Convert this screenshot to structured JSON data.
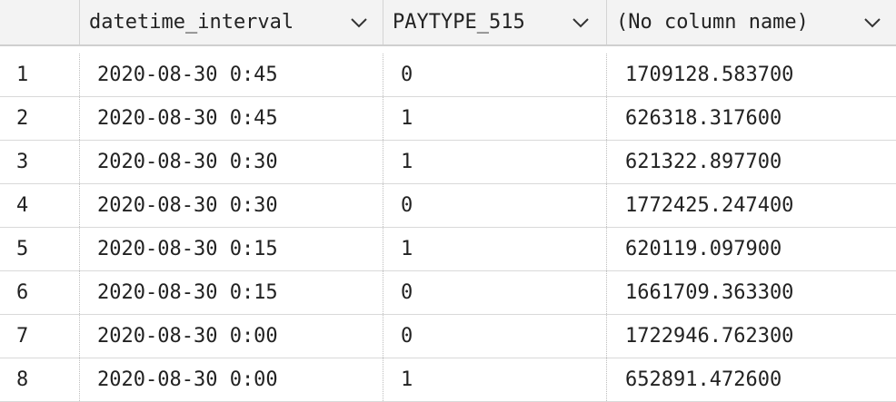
{
  "columns": [
    {
      "label": ""
    },
    {
      "label": "datetime_interval",
      "icon": "chevron-down-icon"
    },
    {
      "label": "PAYTYPE_515",
      "icon": "chevron-down-icon"
    },
    {
      "label": "(No column name)",
      "icon": "chevron-down-icon"
    }
  ],
  "rows": [
    {
      "index": "1",
      "datetime_interval": "2020-08-30 0:45",
      "paytype": "0",
      "value": "1709128.583700"
    },
    {
      "index": "2",
      "datetime_interval": "2020-08-30 0:45",
      "paytype": "1",
      "value": "626318.317600"
    },
    {
      "index": "3",
      "datetime_interval": "2020-08-30 0:30",
      "paytype": "1",
      "value": "621322.897700"
    },
    {
      "index": "4",
      "datetime_interval": "2020-08-30 0:30",
      "paytype": "0",
      "value": "1772425.247400"
    },
    {
      "index": "5",
      "datetime_interval": "2020-08-30 0:15",
      "paytype": "1",
      "value": "620119.097900"
    },
    {
      "index": "6",
      "datetime_interval": "2020-08-30 0:15",
      "paytype": "0",
      "value": "1661709.363300"
    },
    {
      "index": "7",
      "datetime_interval": "2020-08-30 0:00",
      "paytype": "0",
      "value": "1722946.762300"
    },
    {
      "index": "8",
      "datetime_interval": "2020-08-30 0:00",
      "paytype": "1",
      "value": "652891.472600"
    }
  ],
  "colors": {
    "header_bg": "#f3f3f3",
    "row_border": "#d9d9d9",
    "text": "#222222"
  }
}
